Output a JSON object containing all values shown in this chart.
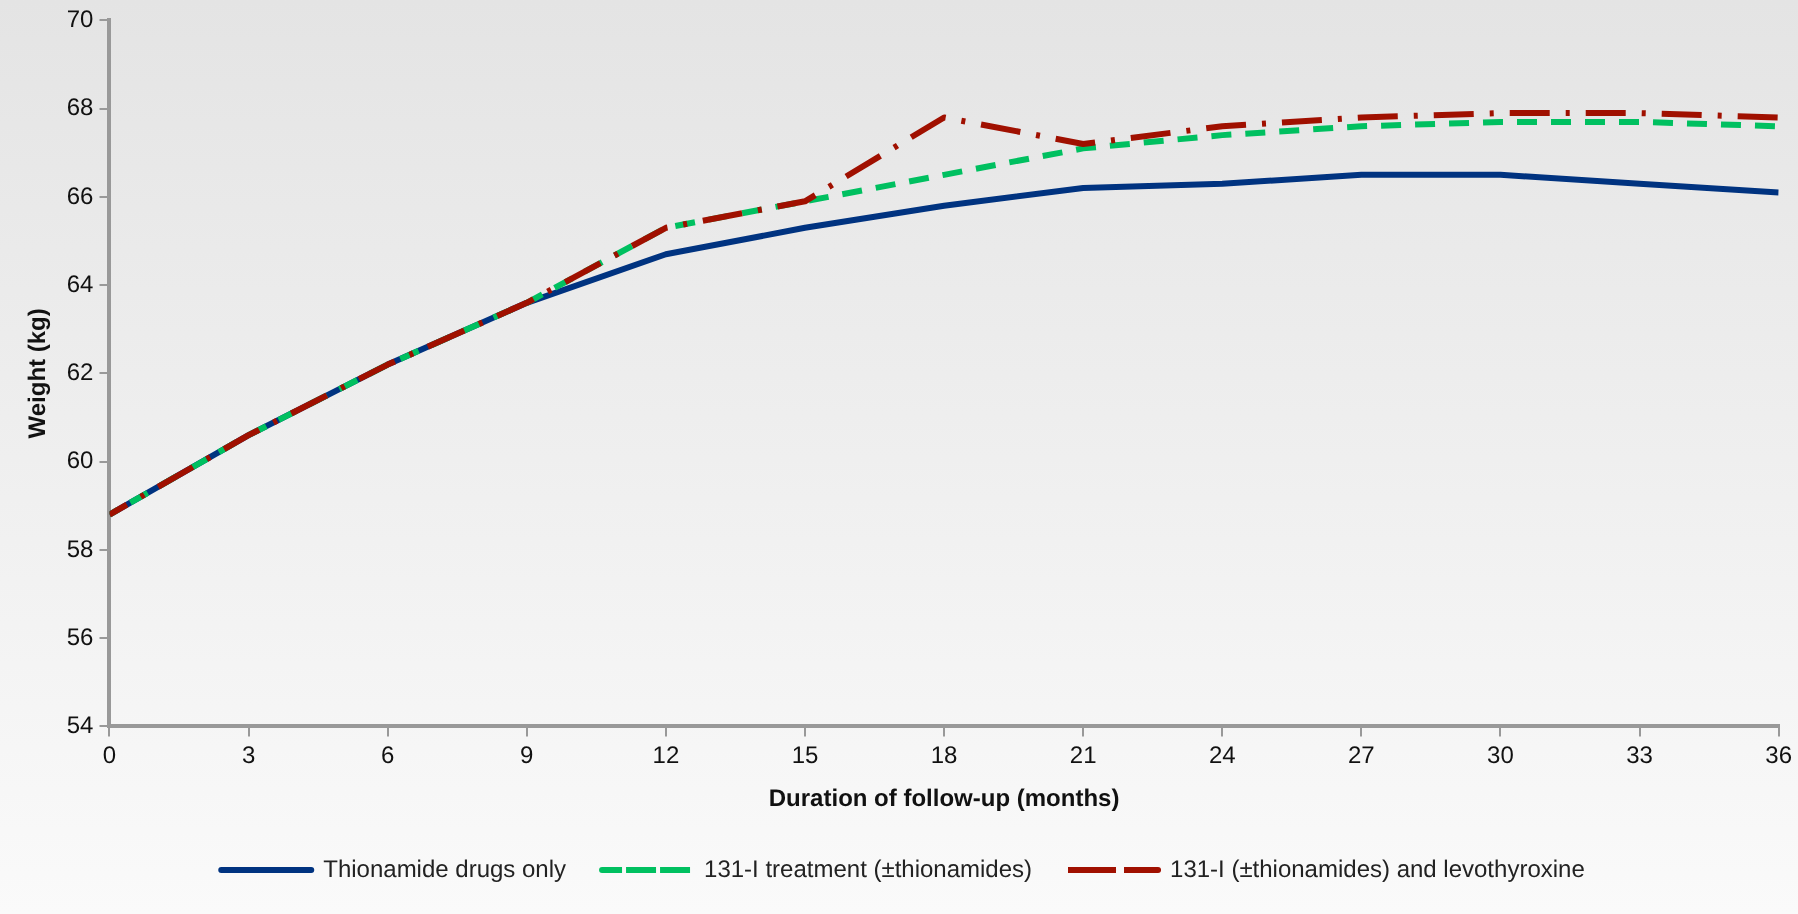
{
  "chart_data": {
    "type": "line",
    "xlabel": "Duration of follow-up (months)",
    "ylabel": "Weight (kg)",
    "x": [
      0,
      3,
      6,
      9,
      12,
      15,
      18,
      21,
      24,
      27,
      30,
      33,
      36
    ],
    "xlim": [
      0,
      36
    ],
    "xticks": [
      0,
      3,
      6,
      9,
      12,
      15,
      18,
      21,
      24,
      27,
      30,
      33,
      36
    ],
    "ylim": [
      54,
      70
    ],
    "yticks": [
      54,
      56,
      58,
      60,
      62,
      64,
      66,
      68,
      70
    ],
    "grid": false,
    "legend": "bottom",
    "marker": "none",
    "series": [
      {
        "name": "Thionamide drugs only",
        "color": "#003380",
        "line_style": "solid",
        "values": [
          58.8,
          60.6,
          62.2,
          63.6,
          64.7,
          65.3,
          65.8,
          66.2,
          66.3,
          66.5,
          66.5,
          66.3,
          66.1
        ]
      },
      {
        "name": "131-I treatment (±thionamides)",
        "color": "#00c060",
        "line_style": "dashed",
        "values": [
          58.8,
          60.6,
          62.2,
          63.6,
          65.3,
          65.9,
          66.5,
          67.1,
          67.4,
          67.6,
          67.7,
          67.7,
          67.6
        ]
      },
      {
        "name": "131-I (±thionamides) and levothyroxine",
        "color": "#a01000",
        "line_style": "dashdot",
        "values": [
          58.8,
          60.6,
          62.2,
          63.6,
          65.3,
          65.9,
          67.8,
          67.2,
          67.6,
          67.8,
          67.9,
          67.9,
          67.8
        ]
      }
    ]
  }
}
